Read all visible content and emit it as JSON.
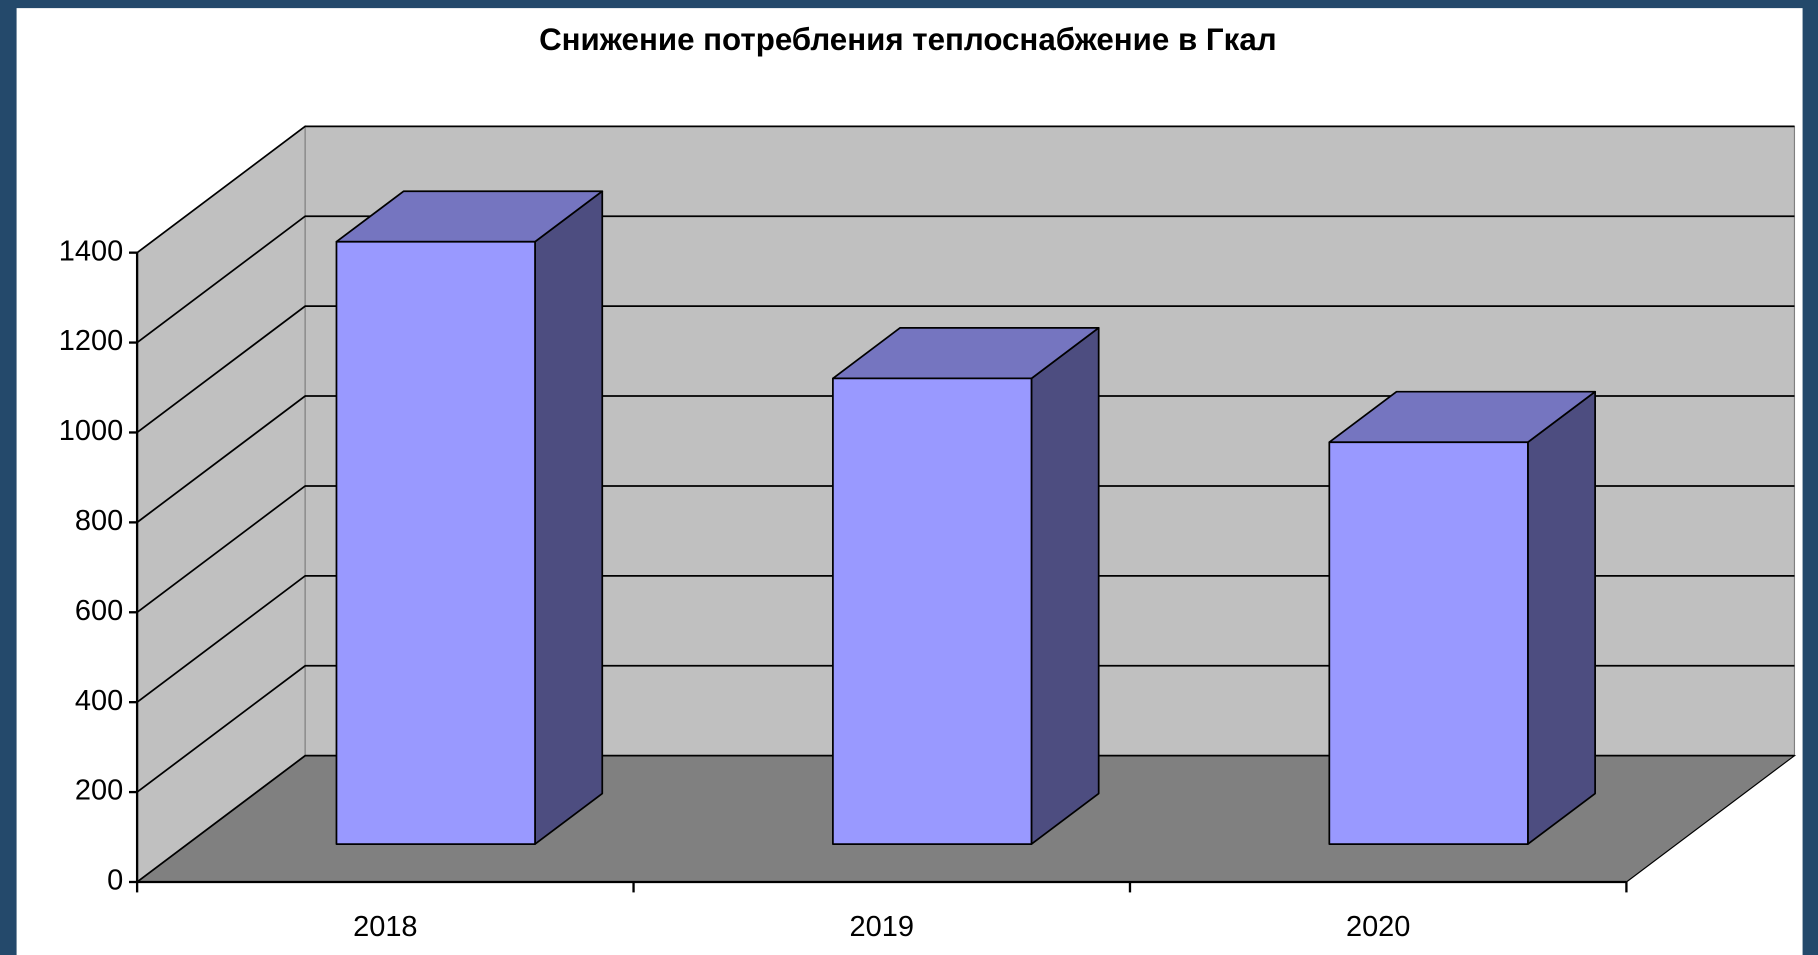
{
  "chart_data": {
    "type": "bar3d",
    "title": "Снижение потребления теплоснабжение в Гкал",
    "categories": [
      "2018",
      "2019",
      "2020"
    ],
    "values": [
      1340,
      1036,
      894
    ],
    "colors": {
      "front": "#9999ff",
      "top": "#7575c0",
      "side": "#4d4d80",
      "walls": "#c0c0c0",
      "floor": "#808080"
    },
    "ylim": [
      0,
      1400
    ],
    "yticks": [
      0,
      200,
      400,
      600,
      800,
      1000,
      1200,
      1400
    ],
    "grid": true
  }
}
